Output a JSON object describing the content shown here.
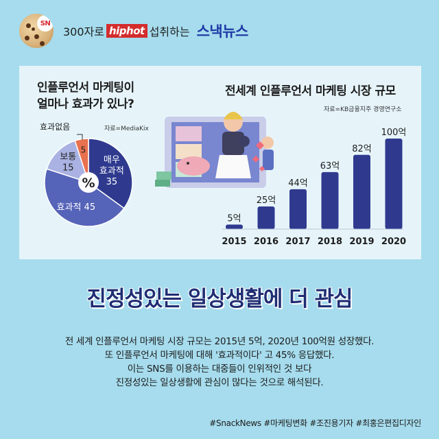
{
  "header": {
    "logo_badge": "SN",
    "slogan_before": "300자로",
    "slogan_highlight": "hiphot",
    "slogan_after": "섭취하는",
    "brand": "스낵뉴스"
  },
  "colors": {
    "background": "#a6dced",
    "panel": "#e6f4fa",
    "bar": "#2f3a8f",
    "pie_very_effective": "#2f3a8f",
    "pie_effective": "#5563b8",
    "pie_normal": "#a9b2e2",
    "pie_none": "#e8714f",
    "subhead": "#1f2d73"
  },
  "chart_data": [
    {
      "type": "pie",
      "title_line1": "인플루언서 마케팅이",
      "title_line2": "얼마나 효과가 있나?",
      "source": "자료=MediaKix",
      "center_label": "%",
      "slices": [
        {
          "name": "매우 효과적",
          "name_line1": "매우",
          "name_line2": "효과적",
          "value": 35,
          "label": "35",
          "color": "#2f3a8f"
        },
        {
          "name": "효과적",
          "value": 45,
          "label": "효과적 45",
          "color": "#5563b8"
        },
        {
          "name": "보통",
          "value": 15,
          "label": "15",
          "color": "#a9b2e2"
        },
        {
          "name": "효과없음",
          "value": 5,
          "label": "5",
          "color": "#e8714f"
        }
      ],
      "legend_none": "효과없음"
    },
    {
      "type": "bar",
      "title": "전세계 인플루언서 마케팅 시장 규모",
      "source": "자료=KB금융지주 경영연구소",
      "categories": [
        "2015",
        "2016",
        "2017",
        "2018",
        "2019",
        "2020"
      ],
      "values": [
        5,
        25,
        44,
        63,
        82,
        100
      ],
      "value_labels": [
        "5억",
        "25억",
        "44억",
        "63억",
        "82억",
        "100억"
      ],
      "unit": "억",
      "ylim": [
        0,
        100
      ]
    }
  ],
  "subhead": "진정성있는 일상생활에 더 관심",
  "body": {
    "line1": "전 세계 인플루언서 마케팅 시장 규모는 2015년 5억, 2020년 100억원 성장했다.",
    "line2": "또 인플루언서 마케팅에 대해 '효과적이다' 고 45% 응답했다.",
    "line3": "이는 SNS를 이용하는 대중들이 인위적인 것 보다",
    "line4": "진정성있는 일상생활에 관심이 많다는 것으로 해석된다."
  },
  "tags": "#SnackNews #마케팅변화 #조진용기자 #최홍은편집디자인"
}
